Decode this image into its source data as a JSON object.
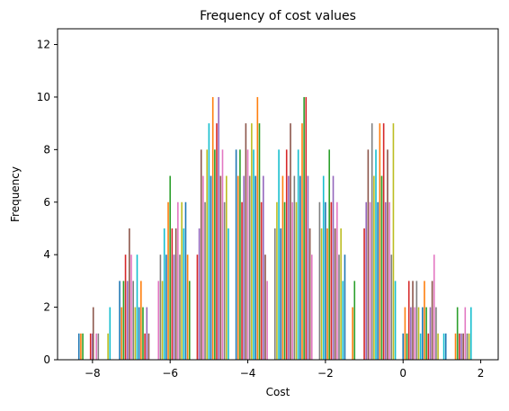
{
  "chart_data": {
    "type": "bar",
    "subtype": "histogram",
    "title": "Frequency of cost values",
    "xlabel": "Cost",
    "ylabel": "Frequency",
    "xlim": [
      -8.9,
      2.45
    ],
    "ylim": [
      0,
      12.6
    ],
    "xticks": [
      -8,
      -6,
      -4,
      -2,
      0,
      2
    ],
    "yticks": [
      0,
      2,
      4,
      6,
      8,
      10,
      12
    ],
    "grid": false,
    "legend": "none",
    "bar_colors": [
      "#1f77b4",
      "#ff7f0e",
      "#2ca02c",
      "#d62728",
      "#9467bd",
      "#8c564b",
      "#e377c2",
      "#7f7f7f",
      "#bcbd22",
      "#17becf"
    ],
    "spine_color": "#000000",
    "bars": [
      {
        "x": -8.35,
        "value": 1
      },
      {
        "x": -8.3,
        "value": 1
      },
      {
        "x": -8.25,
        "value": 1
      },
      {
        "x": -8.05,
        "value": 1
      },
      {
        "x": -8.0,
        "value": 1
      },
      {
        "x": -7.98,
        "value": 2
      },
      {
        "x": -7.9,
        "value": 1
      },
      {
        "x": -7.85,
        "value": 1
      },
      {
        "x": -7.6,
        "value": 1
      },
      {
        "x": -7.55,
        "value": 2
      },
      {
        "x": -7.3,
        "value": 3
      },
      {
        "x": -7.25,
        "value": 2
      },
      {
        "x": -7.2,
        "value": 3
      },
      {
        "x": -7.15,
        "value": 4
      },
      {
        "x": -7.1,
        "value": 3
      },
      {
        "x": -7.05,
        "value": 5
      },
      {
        "x": -7.0,
        "value": 4
      },
      {
        "x": -6.95,
        "value": 3
      },
      {
        "x": -6.9,
        "value": 2
      },
      {
        "x": -6.85,
        "value": 4
      },
      {
        "x": -6.8,
        "value": 2
      },
      {
        "x": -6.75,
        "value": 3
      },
      {
        "x": -6.7,
        "value": 2
      },
      {
        "x": -6.65,
        "value": 1
      },
      {
        "x": -6.6,
        "value": 2
      },
      {
        "x": -6.55,
        "value": 1
      },
      {
        "x": -6.3,
        "value": 3
      },
      {
        "x": -6.25,
        "value": 4
      },
      {
        "x": -6.2,
        "value": 3
      },
      {
        "x": -6.15,
        "value": 5
      },
      {
        "x": -6.1,
        "value": 4
      },
      {
        "x": -6.05,
        "value": 6
      },
      {
        "x": -6.0,
        "value": 7
      },
      {
        "x": -5.95,
        "value": 5
      },
      {
        "x": -5.9,
        "value": 4
      },
      {
        "x": -5.85,
        "value": 5
      },
      {
        "x": -5.8,
        "value": 6
      },
      {
        "x": -5.75,
        "value": 4
      },
      {
        "x": -5.7,
        "value": 6
      },
      {
        "x": -5.65,
        "value": 5
      },
      {
        "x": -5.6,
        "value": 6
      },
      {
        "x": -5.55,
        "value": 4
      },
      {
        "x": -5.5,
        "value": 3
      },
      {
        "x": -5.3,
        "value": 4
      },
      {
        "x": -5.25,
        "value": 5
      },
      {
        "x": -5.2,
        "value": 8
      },
      {
        "x": -5.15,
        "value": 7
      },
      {
        "x": -5.1,
        "value": 6
      },
      {
        "x": -5.05,
        "value": 8
      },
      {
        "x": -5.0,
        "value": 9
      },
      {
        "x": -4.95,
        "value": 7
      },
      {
        "x": -4.9,
        "value": 10
      },
      {
        "x": -4.85,
        "value": 8
      },
      {
        "x": -4.8,
        "value": 9
      },
      {
        "x": -4.75,
        "value": 10
      },
      {
        "x": -4.7,
        "value": 7
      },
      {
        "x": -4.65,
        "value": 8
      },
      {
        "x": -4.6,
        "value": 6
      },
      {
        "x": -4.55,
        "value": 7
      },
      {
        "x": -4.5,
        "value": 5
      },
      {
        "x": -4.3,
        "value": 8
      },
      {
        "x": -4.25,
        "value": 7
      },
      {
        "x": -4.2,
        "value": 8
      },
      {
        "x": -4.15,
        "value": 6
      },
      {
        "x": -4.1,
        "value": 7
      },
      {
        "x": -4.05,
        "value": 9
      },
      {
        "x": -4.0,
        "value": 8
      },
      {
        "x": -3.95,
        "value": 7
      },
      {
        "x": -3.9,
        "value": 9
      },
      {
        "x": -3.85,
        "value": 8
      },
      {
        "x": -3.8,
        "value": 7
      },
      {
        "x": -3.75,
        "value": 10
      },
      {
        "x": -3.7,
        "value": 9
      },
      {
        "x": -3.65,
        "value": 6
      },
      {
        "x": -3.6,
        "value": 7
      },
      {
        "x": -3.55,
        "value": 4
      },
      {
        "x": -3.5,
        "value": 3
      },
      {
        "x": -3.3,
        "value": 5
      },
      {
        "x": -3.25,
        "value": 6
      },
      {
        "x": -3.2,
        "value": 8
      },
      {
        "x": -3.15,
        "value": 5
      },
      {
        "x": -3.1,
        "value": 7
      },
      {
        "x": -3.05,
        "value": 6
      },
      {
        "x": -3.0,
        "value": 8
      },
      {
        "x": -2.95,
        "value": 7
      },
      {
        "x": -2.9,
        "value": 9
      },
      {
        "x": -2.85,
        "value": 6
      },
      {
        "x": -2.8,
        "value": 7
      },
      {
        "x": -2.75,
        "value": 6
      },
      {
        "x": -2.7,
        "value": 8
      },
      {
        "x": -2.65,
        "value": 7
      },
      {
        "x": -2.6,
        "value": 9
      },
      {
        "x": -2.55,
        "value": 10
      },
      {
        "x": -2.5,
        "value": 10
      },
      {
        "x": -2.45,
        "value": 7
      },
      {
        "x": -2.4,
        "value": 5
      },
      {
        "x": -2.35,
        "value": 4
      },
      {
        "x": -2.15,
        "value": 6
      },
      {
        "x": -2.1,
        "value": 5
      },
      {
        "x": -2.05,
        "value": 7
      },
      {
        "x": -2.0,
        "value": 6
      },
      {
        "x": -1.95,
        "value": 5
      },
      {
        "x": -1.9,
        "value": 8
      },
      {
        "x": -1.85,
        "value": 6
      },
      {
        "x": -1.8,
        "value": 7
      },
      {
        "x": -1.75,
        "value": 5
      },
      {
        "x": -1.7,
        "value": 6
      },
      {
        "x": -1.65,
        "value": 4
      },
      {
        "x": -1.6,
        "value": 5
      },
      {
        "x": -1.55,
        "value": 3
      },
      {
        "x": -1.5,
        "value": 4
      },
      {
        "x": -1.3,
        "value": 2
      },
      {
        "x": -1.25,
        "value": 3
      },
      {
        "x": -1.0,
        "value": 5
      },
      {
        "x": -0.95,
        "value": 6
      },
      {
        "x": -0.9,
        "value": 8
      },
      {
        "x": -0.85,
        "value": 6
      },
      {
        "x": -0.8,
        "value": 9
      },
      {
        "x": -0.75,
        "value": 7
      },
      {
        "x": -0.7,
        "value": 8
      },
      {
        "x": -0.65,
        "value": 6
      },
      {
        "x": -0.6,
        "value": 9
      },
      {
        "x": -0.55,
        "value": 7
      },
      {
        "x": -0.5,
        "value": 9
      },
      {
        "x": -0.45,
        "value": 6
      },
      {
        "x": -0.4,
        "value": 8
      },
      {
        "x": -0.35,
        "value": 6
      },
      {
        "x": -0.3,
        "value": 4
      },
      {
        "x": -0.25,
        "value": 9
      },
      {
        "x": -0.2,
        "value": 3
      },
      {
        "x": 0.0,
        "value": 1
      },
      {
        "x": 0.05,
        "value": 2
      },
      {
        "x": 0.1,
        "value": 1
      },
      {
        "x": 0.15,
        "value": 3
      },
      {
        "x": 0.2,
        "value": 2
      },
      {
        "x": 0.25,
        "value": 3
      },
      {
        "x": 0.3,
        "value": 2
      },
      {
        "x": 0.35,
        "value": 3
      },
      {
        "x": 0.4,
        "value": 2
      },
      {
        "x": 0.45,
        "value": 1
      },
      {
        "x": 0.5,
        "value": 2
      },
      {
        "x": 0.55,
        "value": 3
      },
      {
        "x": 0.6,
        "value": 2
      },
      {
        "x": 0.65,
        "value": 1
      },
      {
        "x": 0.7,
        "value": 2
      },
      {
        "x": 0.75,
        "value": 3
      },
      {
        "x": 0.8,
        "value": 4
      },
      {
        "x": 0.85,
        "value": 2
      },
      {
        "x": 0.9,
        "value": 1
      },
      {
        "x": 1.05,
        "value": 1
      },
      {
        "x": 1.1,
        "value": 1
      },
      {
        "x": 1.35,
        "value": 1
      },
      {
        "x": 1.4,
        "value": 2
      },
      {
        "x": 1.45,
        "value": 1
      },
      {
        "x": 1.5,
        "value": 1
      },
      {
        "x": 1.55,
        "value": 1
      },
      {
        "x": 1.6,
        "value": 2
      },
      {
        "x": 1.65,
        "value": 1
      },
      {
        "x": 1.7,
        "value": 1
      },
      {
        "x": 1.75,
        "value": 2
      }
    ]
  }
}
